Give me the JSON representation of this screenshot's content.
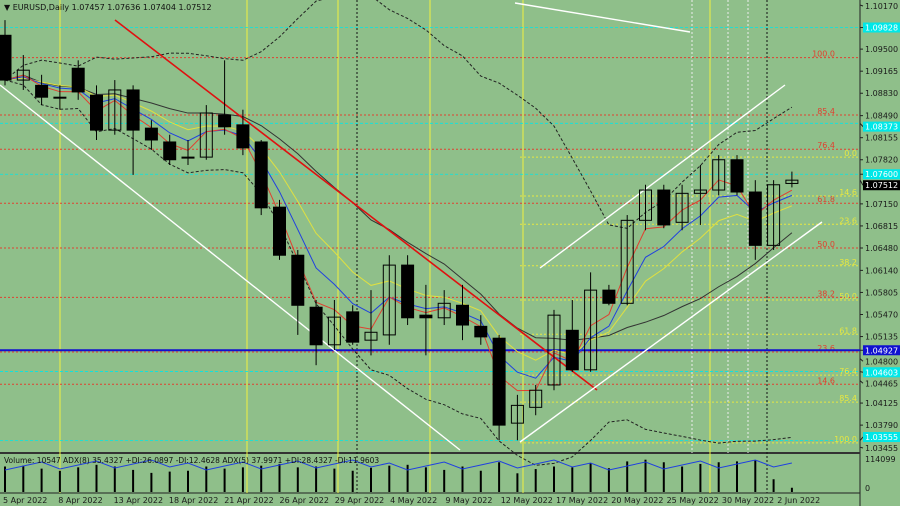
{
  "header": {
    "symbol": "EURUSD,Daily",
    "ohlc": "1.07457 1.07636 1.07404 1.07512"
  },
  "volume_header": "Volume: 10547  ADX(8) 35.4327 +DI:26.0897 -DI:12.4628  ADX(5) 37.9971 +DI:28.4327 -DI:11.9603",
  "colors": {
    "background": "#8fbf8a",
    "bull": "#ffffff",
    "bear": "#000000",
    "fib_red": "#e04030",
    "fib_yellow": "#e8e840",
    "trend_red": "#e01010",
    "support_blue": "#1010d0",
    "cyan": "#00e8e8"
  },
  "price_axis": [
    "1.10170",
    "1.09500",
    "1.09165",
    "1.08830",
    "1.08490",
    "1.08155",
    "1.07820",
    "1.07150",
    "1.06815",
    "1.06480",
    "1.06140",
    "1.05805",
    "1.05470",
    "1.05135",
    "1.04800",
    "1.04465",
    "1.04125",
    "1.03790",
    "1.03455"
  ],
  "price_range": [
    1.0348,
    1.1022
  ],
  "price_tags": [
    {
      "price": 1.09828,
      "text": "1.09828",
      "color": "#00e8e8"
    },
    {
      "price": 1.08373,
      "text": "1.08373",
      "color": "#00e8e8"
    },
    {
      "price": 1.076,
      "text": "1.07600",
      "color": "#00e8e8"
    },
    {
      "price": 1.07512,
      "text": "1.07512",
      "color": "#000000"
    },
    {
      "price": 1.04927,
      "text": "1.04927",
      "color": "#1010d0"
    },
    {
      "price": 1.04603,
      "text": "1.04603",
      "color": "#00e8e8"
    },
    {
      "price": 1.03555,
      "text": "1.03555",
      "color": "#00e8e8"
    }
  ],
  "volume_axis": [
    "114099",
    "0"
  ],
  "date_axis": [
    "5 Apr 2022",
    "8 Apr 2022",
    "13 Apr 2022",
    "18 Apr 2022",
    "21 Apr 2022",
    "26 Apr 2022",
    "29 Apr 2022",
    "4 May 2022",
    "9 May 2022",
    "12 May 2022",
    "17 May 2022",
    "20 May 2022",
    "25 May 2022",
    "30 May 2022",
    "2 Jun 2022"
  ],
  "fib_red": [
    {
      "label": "100.0",
      "price": 1.0937
    },
    {
      "label": "85.4",
      "price": 1.085
    },
    {
      "label": "76.4",
      "price": 1.0798
    },
    {
      "label": "61.8",
      "price": 1.0716
    },
    {
      "label": "50.0",
      "price": 1.0648
    },
    {
      "label": "38.2",
      "price": 1.0573
    },
    {
      "label": "23.6",
      "price": 1.049
    },
    {
      "label": "14.6",
      "price": 1.0441
    }
  ],
  "fib_yellow": [
    {
      "label": "0.0",
      "price": 1.0786
    },
    {
      "label": "14.6",
      "price": 1.0727
    },
    {
      "label": "23.6",
      "price": 1.0684
    },
    {
      "label": "38.2",
      "price": 1.0621
    },
    {
      "label": "50.0",
      "price": 1.0569
    },
    {
      "label": "61.8",
      "price": 1.0517
    },
    {
      "label": "76.4",
      "price": 1.0455
    },
    {
      "label": "85.4",
      "price": 1.0414
    },
    {
      "label": "100.0",
      "price": 1.0352
    }
  ],
  "support_line": 1.04927,
  "candles": [
    [
      1.0971,
      1.0994,
      1.0895,
      1.0903
    ],
    [
      1.0903,
      1.0941,
      1.0888,
      1.0918
    ],
    [
      1.0895,
      1.0911,
      1.0865,
      1.0877
    ],
    [
      1.0877,
      1.0895,
      1.0858,
      1.0877
    ],
    [
      1.0921,
      1.0933,
      1.0873,
      1.0885
    ],
    [
      1.088,
      1.0895,
      1.0812,
      1.0827
    ],
    [
      1.0827,
      1.0903,
      1.082,
      1.0888
    ],
    [
      1.0888,
      1.0895,
      1.0759,
      1.0827
    ],
    [
      1.083,
      1.0842,
      1.0797,
      1.0812
    ],
    [
      1.0809,
      1.082,
      1.0774,
      1.0782
    ],
    [
      1.0785,
      1.0812,
      1.0774,
      1.0786
    ],
    [
      1.0786,
      1.0865,
      1.0782,
      1.0853
    ],
    [
      1.085,
      1.0933,
      1.082,
      1.0832
    ],
    [
      1.0835,
      1.0858,
      1.0789,
      1.08
    ],
    [
      1.0809,
      1.0812,
      1.0698,
      1.0709
    ],
    [
      1.071,
      1.0721,
      1.063,
      1.0637
    ],
    [
      1.0637,
      1.0645,
      1.0516,
      1.0561
    ],
    [
      1.0558,
      1.0569,
      1.047,
      1.0501
    ],
    [
      1.0501,
      1.0569,
      1.0493,
      1.0543
    ],
    [
      1.0551,
      1.0561,
      1.0501,
      1.0505
    ],
    [
      1.0508,
      1.0584,
      1.0485,
      1.052
    ],
    [
      1.0516,
      1.0637,
      1.0501,
      1.0622
    ],
    [
      1.0622,
      1.0637,
      1.0531,
      1.0542
    ],
    [
      1.0546,
      1.0592,
      1.0485,
      1.0542
    ],
    [
      1.0542,
      1.0584,
      1.0531,
      1.0564
    ],
    [
      1.0561,
      1.0592,
      1.0508,
      1.0531
    ],
    [
      1.0529,
      1.0546,
      1.0501,
      1.0513
    ],
    [
      1.0511,
      1.0516,
      1.0356,
      1.0379
    ],
    [
      1.0382,
      1.0425,
      1.0356,
      1.0409
    ],
    [
      1.0406,
      1.044,
      1.0394,
      1.0432
    ],
    [
      1.044,
      1.0554,
      1.0432,
      1.0546
    ],
    [
      1.0523,
      1.0569,
      1.046,
      1.0463
    ],
    [
      1.0463,
      1.0611,
      1.046,
      1.0584
    ],
    [
      1.0584,
      1.0592,
      1.0561,
      1.0564
    ],
    [
      1.0564,
      1.0698,
      1.0561,
      1.069
    ],
    [
      1.069,
      1.0744,
      1.0675,
      1.0736
    ],
    [
      1.0736,
      1.0744,
      1.0678,
      1.0683
    ],
    [
      1.0687,
      1.0744,
      1.0675,
      1.0731
    ],
    [
      1.0731,
      1.0774,
      1.0683,
      1.0736
    ],
    [
      1.0736,
      1.0789,
      1.0728,
      1.0782
    ],
    [
      1.0782,
      1.0789,
      1.0728,
      1.0733
    ],
    [
      1.0733,
      1.0751,
      1.063,
      1.0652
    ],
    [
      1.0652,
      1.0751,
      1.0645,
      1.0744
    ],
    [
      1.0746,
      1.0764,
      1.074,
      1.0751
    ]
  ],
  "volumes": [
    60,
    62,
    55,
    50,
    58,
    64,
    60,
    52,
    45,
    48,
    50,
    60,
    55,
    58,
    62,
    66,
    58,
    60,
    55,
    50,
    57,
    62,
    64,
    58,
    52,
    60,
    50,
    70,
    44,
    54,
    60,
    58,
    68,
    56,
    72,
    76,
    70,
    60,
    66,
    70,
    72,
    74,
    30,
    10
  ]
}
